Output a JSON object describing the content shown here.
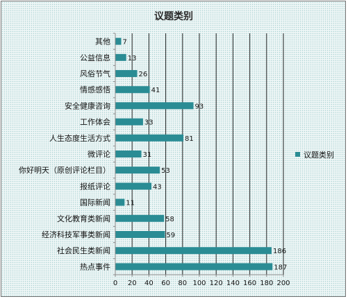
{
  "chart_data": {
    "type": "bar",
    "orientation": "horizontal",
    "title": "议题类别",
    "categories": [
      "其他",
      "公益信息",
      "风俗节气",
      "情感感悟",
      "安全健康咨询",
      "工作体会",
      "人生态度生活方式",
      "微评论",
      "你好明天（原创评论栏目）",
      "报纸评论",
      "国际新闻",
      "文化教育类新闻",
      "经济科技军事类新闻",
      "社会民生类新闻",
      "热点事件"
    ],
    "series": [
      {
        "name": "议题类别",
        "values": [
          7,
          13,
          26,
          41,
          93,
          33,
          81,
          31,
          53,
          43,
          11,
          58,
          59,
          186,
          187
        ]
      }
    ],
    "xlim": [
      0,
      200
    ],
    "xticks": [
      0,
      20,
      40,
      60,
      80,
      100,
      120,
      140,
      160,
      180,
      200
    ],
    "grid": "vertical",
    "legend": "right",
    "colors": {
      "bar": "#2a8c94",
      "grid": "#222222",
      "axis": "#8a8a8a"
    }
  }
}
